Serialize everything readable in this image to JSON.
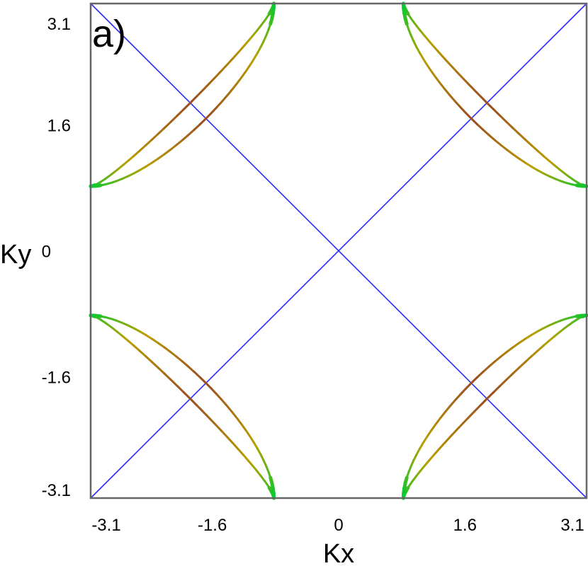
{
  "chart_data": {
    "type": "line",
    "title": "",
    "panel_label": "a)",
    "xlabel": "Kx",
    "ylabel": "Ky",
    "xlim": [
      -3.14,
      3.14
    ],
    "ylim": [
      -3.14,
      3.14
    ],
    "xticks": [
      -3.1,
      -1.6,
      0,
      1.6,
      3.1
    ],
    "yticks": [
      3.1,
      1.6,
      0,
      -1.6,
      -3.1
    ],
    "grid": false,
    "colors": {
      "line": "#2a2aff",
      "pocket_end": "#00cc33",
      "pocket_mid": "#b8a000",
      "pocket_center": "#9a4a20",
      "frame": "#666666"
    },
    "series": [
      {
        "name": "diagonal-1",
        "kind": "line",
        "points": [
          [
            -3.14,
            -3.14
          ],
          [
            3.14,
            3.14
          ]
        ]
      },
      {
        "name": "diagonal-2",
        "kind": "line",
        "points": [
          [
            -3.14,
            3.14
          ],
          [
            3.14,
            -3.14
          ]
        ]
      },
      {
        "name": "pocket-top-left",
        "corner": [
          -3.14,
          3.14
        ],
        "endpoint_offset": 2.32,
        "arcs": [
          0.27,
          0.8
        ]
      },
      {
        "name": "pocket-top-right",
        "corner": [
          3.14,
          3.14
        ],
        "endpoint_offset": 2.32,
        "arcs": [
          0.27,
          0.8
        ]
      },
      {
        "name": "pocket-bottom-left",
        "corner": [
          -3.14,
          -3.14
        ],
        "endpoint_offset": 2.32,
        "arcs": [
          0.27,
          0.8
        ]
      },
      {
        "name": "pocket-bottom-right",
        "corner": [
          3.14,
          -3.14
        ],
        "endpoint_offset": 2.32,
        "arcs": [
          0.27,
          0.8
        ]
      }
    ]
  }
}
